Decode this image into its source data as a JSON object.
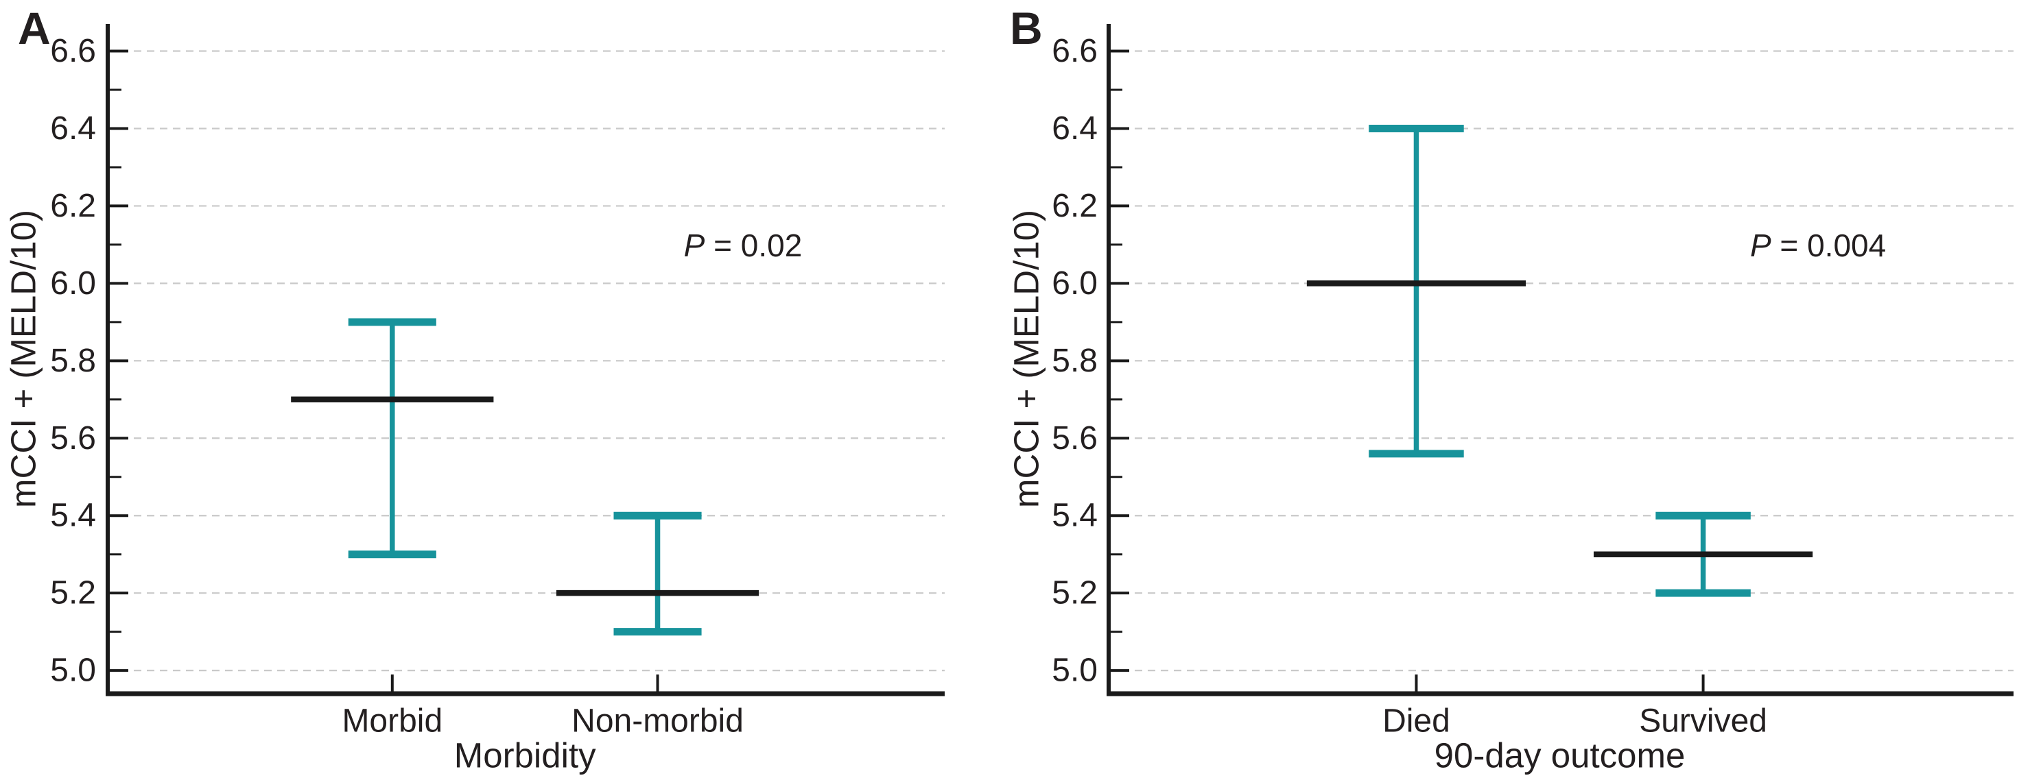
{
  "figure": {
    "background": "#ffffff",
    "axis_color": "#1a1a1a",
    "grid_color": "#c9c9c9",
    "text_color": "#231f20",
    "error_bar_color": "#17939b",
    "mean_line_color": "#1a1a1a"
  },
  "chart_data": [
    {
      "type": "errorbar",
      "panel_letter": "A",
      "title": "",
      "xlabel": "Morbidity",
      "ylabel": "mCCI + (MELD/10)",
      "categories": [
        "Morbid",
        "Non-morbid"
      ],
      "means": [
        5.7,
        5.2
      ],
      "ci_low": [
        5.3,
        5.1
      ],
      "ci_high": [
        5.9,
        5.4
      ],
      "p_value_label": "P = 0.02",
      "ylim": [
        4.94,
        6.67
      ],
      "yticks": [
        5.0,
        5.2,
        5.4,
        5.6,
        5.8,
        6.0,
        6.2,
        6.4,
        6.6
      ],
      "ytick_labels": [
        "5.0",
        "5.2",
        "5.4",
        "5.6",
        "5.8",
        "6.0",
        "6.2",
        "6.4",
        "6.6"
      ],
      "minor_tick_step": 0.1,
      "grid": true,
      "legend": false
    },
    {
      "type": "errorbar",
      "panel_letter": "B",
      "title": "",
      "xlabel": "90-day outcome",
      "ylabel": "mCCI + (MELD/10)",
      "categories": [
        "Died",
        "Survived"
      ],
      "means": [
        6.0,
        5.3
      ],
      "ci_low": [
        5.56,
        5.2
      ],
      "ci_high": [
        6.4,
        5.4
      ],
      "p_value_label": "P = 0.004",
      "ylim": [
        4.94,
        6.67
      ],
      "yticks": [
        5.0,
        5.2,
        5.4,
        5.6,
        5.8,
        6.0,
        6.2,
        6.4,
        6.6
      ],
      "ytick_labels": [
        "5.0",
        "5.2",
        "5.4",
        "5.6",
        "5.8",
        "6.0",
        "6.2",
        "6.4",
        "6.6"
      ],
      "minor_tick_step": 0.1,
      "grid": true,
      "legend": false
    }
  ]
}
